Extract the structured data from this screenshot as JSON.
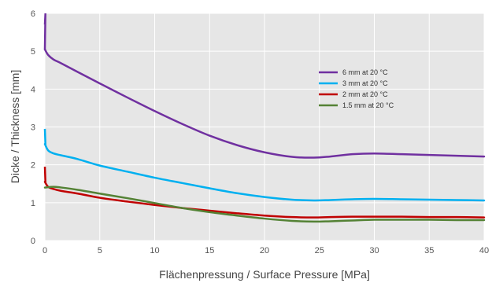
{
  "chart_data": {
    "type": "line",
    "title": "",
    "xlabel": "Flächenpressung / Surface Pressure [MPa]",
    "ylabel": "Dicke / Thickness [mm]",
    "xlim": [
      0,
      40
    ],
    "ylim": [
      0,
      6
    ],
    "x_ticks": [
      0,
      5,
      10,
      15,
      20,
      25,
      30,
      35,
      40
    ],
    "y_ticks": [
      0,
      1,
      2,
      3,
      4,
      5,
      6
    ],
    "grid": true,
    "legend_position": "top-right",
    "plot_background": "#e6e6e6",
    "series": [
      {
        "name": "6 mm at 20 °C",
        "color": "#7030a0",
        "points": [
          [
            0,
            5.05
          ],
          [
            0.3,
            4.9
          ],
          [
            0.8,
            4.78
          ],
          [
            1.5,
            4.68
          ],
          [
            3,
            4.45
          ],
          [
            5,
            4.15
          ],
          [
            7.5,
            3.78
          ],
          [
            10,
            3.42
          ],
          [
            12.5,
            3.08
          ],
          [
            15,
            2.77
          ],
          [
            17.5,
            2.52
          ],
          [
            20,
            2.33
          ],
          [
            22.5,
            2.21
          ],
          [
            24.5,
            2.19
          ],
          [
            26,
            2.22
          ],
          [
            28,
            2.28
          ],
          [
            30,
            2.3
          ],
          [
            32.5,
            2.28
          ],
          [
            35,
            2.26
          ],
          [
            37.5,
            2.24
          ],
          [
            40,
            2.22
          ]
        ],
        "initial_spike": [
          [
            0,
            5.7
          ],
          [
            0.05,
            6.0
          ]
        ]
      },
      {
        "name": "3 mm at 20 °C",
        "color": "#00b0f0",
        "points": [
          [
            0,
            2.55
          ],
          [
            0.3,
            2.38
          ],
          [
            0.8,
            2.3
          ],
          [
            1.5,
            2.25
          ],
          [
            3,
            2.15
          ],
          [
            5,
            1.98
          ],
          [
            7.5,
            1.82
          ],
          [
            10,
            1.66
          ],
          [
            12.5,
            1.52
          ],
          [
            15,
            1.38
          ],
          [
            17.5,
            1.25
          ],
          [
            20,
            1.15
          ],
          [
            22.5,
            1.08
          ],
          [
            24.5,
            1.06
          ],
          [
            26,
            1.07
          ],
          [
            28,
            1.09
          ],
          [
            30,
            1.1
          ],
          [
            32.5,
            1.09
          ],
          [
            35,
            1.08
          ],
          [
            37.5,
            1.07
          ],
          [
            40,
            1.06
          ]
        ],
        "initial_spike": [
          [
            0,
            2.95
          ],
          [
            0.05,
            2.55
          ]
        ]
      },
      {
        "name": "2 mm at 20 °C",
        "color": "#c00000",
        "points": [
          [
            0,
            1.55
          ],
          [
            0.3,
            1.42
          ],
          [
            0.8,
            1.36
          ],
          [
            1.5,
            1.31
          ],
          [
            3,
            1.24
          ],
          [
            5,
            1.13
          ],
          [
            7.5,
            1.03
          ],
          [
            10,
            0.94
          ],
          [
            12.5,
            0.86
          ],
          [
            15,
            0.79
          ],
          [
            17.5,
            0.72
          ],
          [
            20,
            0.66
          ],
          [
            22.5,
            0.62
          ],
          [
            24.5,
            0.61
          ],
          [
            26,
            0.62
          ],
          [
            28,
            0.63
          ],
          [
            30,
            0.63
          ],
          [
            32.5,
            0.63
          ],
          [
            35,
            0.62
          ],
          [
            37.5,
            0.62
          ],
          [
            40,
            0.61
          ]
        ],
        "initial_spike": [
          [
            0,
            1.95
          ],
          [
            0.05,
            1.55
          ]
        ]
      },
      {
        "name": "1.5 mm at 20 °C",
        "color": "#548235",
        "points": [
          [
            0,
            1.4
          ],
          [
            0.8,
            1.42
          ],
          [
            1.5,
            1.4
          ],
          [
            3,
            1.34
          ],
          [
            5,
            1.24
          ],
          [
            7.5,
            1.12
          ],
          [
            10,
            0.99
          ],
          [
            12.5,
            0.86
          ],
          [
            15,
            0.75
          ],
          [
            17.5,
            0.66
          ],
          [
            20,
            0.58
          ],
          [
            22.5,
            0.52
          ],
          [
            24.5,
            0.5
          ],
          [
            26,
            0.51
          ],
          [
            28,
            0.53
          ],
          [
            30,
            0.55
          ],
          [
            32.5,
            0.55
          ],
          [
            35,
            0.55
          ],
          [
            37.5,
            0.54
          ],
          [
            40,
            0.54
          ]
        ]
      }
    ]
  }
}
